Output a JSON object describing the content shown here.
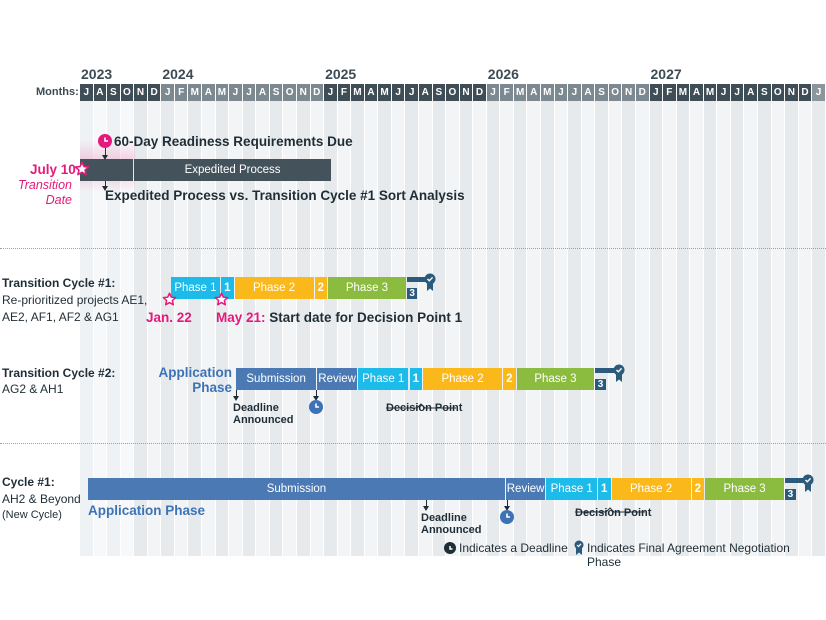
{
  "colors": {
    "month_dark": "#3f4d57",
    "month_mid": "#7c8990",
    "expedited": "#44525c",
    "submission": "#4a79b4",
    "review": "#4a79b4",
    "phase1": "#1dbbea",
    "phase2": "#fbb81b",
    "phase3": "#8bbb3f",
    "final": "#2b5a7d",
    "pink": "#e5197b",
    "app_blue": "#3e72b6"
  },
  "axis": {
    "months_label": "Months:",
    "years": [
      "2023",
      "2024",
      "2025",
      "2026",
      "2027"
    ],
    "year_start_month_index": [
      0,
      6,
      18,
      30,
      42
    ],
    "months": [
      "J",
      "A",
      "S",
      "O",
      "N",
      "D",
      "J",
      "F",
      "M",
      "A",
      "M",
      "J",
      "J",
      "A",
      "S",
      "O",
      "N",
      "D",
      "J",
      "F",
      "M",
      "A",
      "M",
      "J",
      "J",
      "A",
      "S",
      "O",
      "N",
      "D",
      "J",
      "F",
      "M",
      "A",
      "M",
      "J",
      "J",
      "A",
      "S",
      "O",
      "N",
      "D",
      "J",
      "F",
      "M",
      "A",
      "M",
      "J",
      "J",
      "A",
      "S",
      "O",
      "N",
      "D",
      "J"
    ],
    "start": "Jul 2023",
    "end": "Jan 2028"
  },
  "section1": {
    "transition_date": "July 10",
    "transition_label_1": "Transition",
    "transition_label_2": "Date",
    "readiness_label": "60-Day Readiness Requirements Due",
    "expedited_label": "Expedited Process",
    "sort_analysis_label": "Expedited Process vs. Transition Cycle #1 Sort Analysis",
    "bar": {
      "start_month": 0,
      "split_month": 4.0,
      "end_month": 18.5
    }
  },
  "section2": {
    "title": "Transition Cycle #1:",
    "subtitle_1": "Re-prioritized projects AE1,",
    "subtitle_2": "AE2, AF1, AF2 & AG1",
    "jan22": "Jan. 22",
    "may21": "May 21:",
    "may21_text": "Start date for Decision Point 1",
    "segments": [
      {
        "label": "Phase 1",
        "type": "phase1",
        "start": 6.7,
        "end": 10.4
      },
      {
        "label": "1",
        "type": "phase1",
        "start": 10.4,
        "end": 11.4
      },
      {
        "label": "Phase 2",
        "type": "phase2",
        "start": 11.4,
        "end": 17.3
      },
      {
        "label": "2",
        "type": "phase2",
        "start": 17.3,
        "end": 18.3
      },
      {
        "label": "Phase 3",
        "type": "phase3",
        "start": 18.3,
        "end": 24.1
      },
      {
        "label": "3",
        "type": "final",
        "start": 24.1,
        "end": 25.6
      }
    ]
  },
  "section3": {
    "title": "Transition Cycle #2:",
    "subtitle": "AG2 & AH1",
    "app_phase_1": "Application",
    "app_phase_2": "Phase",
    "deadline_1": "Deadline",
    "deadline_2": "Announced",
    "decision_point": "Decision Point",
    "segments": [
      {
        "label": "Submission",
        "type": "submission",
        "start": 11.5,
        "end": 17.5
      },
      {
        "label": "Review",
        "type": "review",
        "start": 17.5,
        "end": 20.5
      },
      {
        "label": "Phase 1",
        "type": "phase1",
        "start": 20.5,
        "end": 24.3
      },
      {
        "label": "1",
        "type": "phase1",
        "start": 24.3,
        "end": 25.3
      },
      {
        "label": "Phase 2",
        "type": "phase2",
        "start": 25.3,
        "end": 31.2
      },
      {
        "label": "2",
        "type": "phase2",
        "start": 31.2,
        "end": 32.2
      },
      {
        "label": "Phase 3",
        "type": "phase3",
        "start": 32.2,
        "end": 38.0
      },
      {
        "label": "3",
        "type": "final",
        "start": 38.0,
        "end": 39.5
      }
    ]
  },
  "section4": {
    "title": "Cycle #1:",
    "subtitle_1": "AH2 & Beyond",
    "subtitle_2": "(New Cycle)",
    "app_phase": "Application Phase",
    "deadline_1": "Deadline",
    "deadline_2": "Announced",
    "decision_point": "Decision Point",
    "segments": [
      {
        "label": "Submission",
        "type": "submission",
        "start": 0.6,
        "end": 31.4
      },
      {
        "label": "Review",
        "type": "review",
        "start": 31.4,
        "end": 34.4
      },
      {
        "label": "Phase 1",
        "type": "phase1",
        "start": 34.4,
        "end": 38.2
      },
      {
        "label": "1",
        "type": "phase1",
        "start": 38.2,
        "end": 39.2
      },
      {
        "label": "Phase 2",
        "type": "phase2",
        "start": 39.2,
        "end": 45.1
      },
      {
        "label": "2",
        "type": "phase2",
        "start": 45.1,
        "end": 46.1
      },
      {
        "label": "Phase 3",
        "type": "phase3",
        "start": 46.1,
        "end": 52.0
      },
      {
        "label": "3",
        "type": "final",
        "start": 52.0,
        "end": 53.5
      }
    ]
  },
  "legend": {
    "deadline": "Indicates a Deadline",
    "final": "Indicates Final Agreement Negotiation Phase"
  }
}
